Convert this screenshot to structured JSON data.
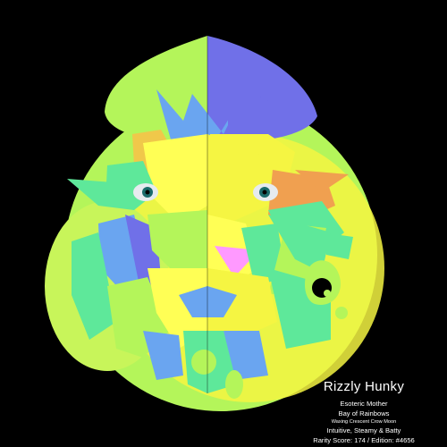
{
  "artwork": {
    "background": "#000000",
    "palette": [
      "#b4f55a",
      "#7070e8",
      "#6aa5f0",
      "#ffff55",
      "#f0c84a",
      "#5ee89a",
      "#f5f542",
      "#ff99ff",
      "#f0a050"
    ]
  },
  "caption": {
    "name": "Rizzly Hunky",
    "line1": "Esoteric Mother",
    "line2": "Bay of Rainbows",
    "line3": "Waxing Crescent Crow Moon",
    "line4": "Intuitive, Steamy & Batty",
    "line5": "Rarity Score: 174 / Edition: #4656"
  }
}
